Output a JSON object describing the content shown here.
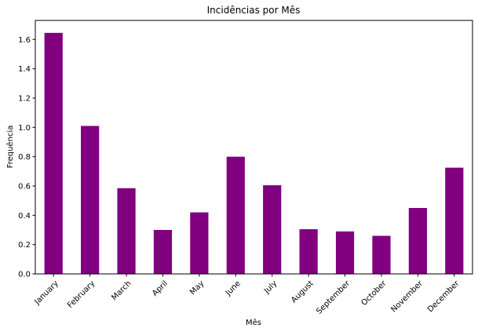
{
  "chart_data": {
    "type": "bar",
    "title": "Incidências por Mês",
    "xlabel": "Mês",
    "ylabel": "Frequência",
    "categories": [
      "January",
      "February",
      "March",
      "April",
      "May",
      "June",
      "July",
      "August",
      "September",
      "October",
      "November",
      "December"
    ],
    "values": [
      1.645,
      1.01,
      0.585,
      0.3,
      0.42,
      0.8,
      0.605,
      0.305,
      0.29,
      0.26,
      0.45,
      0.725
    ],
    "ylim": [
      0,
      1.73
    ],
    "yticks": [
      "0.0",
      "0.2",
      "0.4",
      "0.6",
      "0.8",
      "1.0",
      "1.2",
      "1.4",
      "1.6"
    ],
    "grid": false,
    "legend": "none",
    "bar_color": "#800080"
  }
}
